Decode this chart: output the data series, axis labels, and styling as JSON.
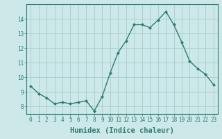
{
  "xlabel": "Humidex (Indice chaleur)",
  "x": [
    0,
    1,
    2,
    3,
    4,
    5,
    6,
    7,
    8,
    9,
    10,
    11,
    12,
    13,
    14,
    15,
    16,
    17,
    18,
    19,
    20,
    21,
    22,
    23
  ],
  "y": [
    9.4,
    8.9,
    8.6,
    8.2,
    8.3,
    8.2,
    8.3,
    8.4,
    7.7,
    8.7,
    10.3,
    11.7,
    12.5,
    13.6,
    13.6,
    13.4,
    13.9,
    14.5,
    13.6,
    12.4,
    11.1,
    10.6,
    10.2,
    9.5
  ],
  "line_color": "#2e7d6e",
  "marker": "D",
  "marker_size": 2.0,
  "line_width": 1.0,
  "bg_color": "#cce8e8",
  "grid_color": "#aacccc",
  "ylim": [
    7.5,
    15.0
  ],
  "yticks": [
    8,
    9,
    10,
    11,
    12,
    13,
    14
  ],
  "xticks": [
    0,
    1,
    2,
    3,
    4,
    5,
    6,
    7,
    8,
    9,
    10,
    11,
    12,
    13,
    14,
    15,
    16,
    17,
    18,
    19,
    20,
    21,
    22,
    23
  ],
  "tick_fontsize": 5.5,
  "xlabel_fontsize": 7.5,
  "axis_color": "#2e7d6e"
}
